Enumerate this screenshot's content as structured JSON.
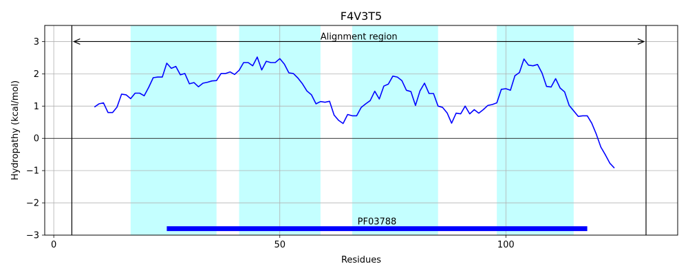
{
  "chart_data": {
    "type": "line",
    "title": "F4V3T5",
    "xlabel": "Residues",
    "ylabel": "Hydropathy (kcal/mol)",
    "xlim": [
      -2,
      138
    ],
    "ylim": [
      -3,
      3.5
    ],
    "xticks": [
      0,
      50,
      100
    ],
    "yticks": [
      -3,
      -2,
      -1,
      0,
      1,
      2,
      3
    ],
    "xtick_labels": [
      "0",
      "50",
      "100"
    ],
    "ytick_labels": [
      "−3",
      "−2",
      "−1",
      "0",
      "1",
      "2",
      "3"
    ],
    "grid": true,
    "colors": {
      "line": "#0000ff",
      "band": "#c4ffff",
      "domain_bar": "#0000ff",
      "zero_line": "#000000",
      "grid": "#b0b0b0"
    },
    "hydrophobic_regions": [
      [
        17,
        36
      ],
      [
        41,
        59
      ],
      [
        66,
        85
      ],
      [
        98,
        115
      ]
    ],
    "alignment_region": {
      "label": "Alignment region",
      "start": 4,
      "end": 131,
      "y": 3
    },
    "domain": {
      "label": "PF03788",
      "start": 25,
      "end": 118,
      "y": -2.8
    },
    "series": [
      {
        "x": [
          9,
          10,
          11,
          12,
          13,
          14,
          15,
          16,
          17,
          18,
          19,
          20,
          21,
          22,
          23,
          24,
          25,
          26,
          27,
          28,
          29,
          30,
          31,
          32,
          33,
          34,
          35,
          36,
          37,
          38,
          39,
          40,
          41,
          42,
          43,
          44,
          45,
          46,
          47,
          48,
          49,
          50,
          51,
          52,
          53,
          54,
          55,
          56,
          57,
          58,
          59,
          60,
          61,
          62,
          63,
          64,
          65,
          66,
          67,
          68,
          69,
          70,
          71,
          72,
          73,
          74,
          75,
          76,
          77,
          78,
          79,
          80,
          81,
          82,
          83,
          84,
          85,
          86,
          87,
          88,
          89,
          90,
          91,
          92,
          93,
          94,
          95,
          96,
          97,
          98,
          99,
          100,
          101,
          102,
          103,
          104,
          105,
          106,
          107,
          108,
          109,
          110,
          111,
          112,
          113,
          114,
          115,
          116,
          117,
          118,
          119,
          120,
          121,
          122,
          123,
          124
        ],
        "values": [
          0.97,
          1.07,
          1.1,
          0.8,
          0.8,
          0.97,
          1.37,
          1.35,
          1.23,
          1.4,
          1.4,
          1.32,
          1.58,
          1.88,
          1.9,
          1.9,
          2.33,
          2.17,
          2.23,
          1.97,
          2.01,
          1.69,
          1.73,
          1.6,
          1.71,
          1.74,
          1.78,
          1.79,
          2.01,
          2.01,
          2.06,
          1.98,
          2.11,
          2.35,
          2.35,
          2.25,
          2.52,
          2.12,
          2.39,
          2.35,
          2.35,
          2.47,
          2.3,
          2.03,
          2.01,
          1.87,
          1.69,
          1.47,
          1.35,
          1.07,
          1.14,
          1.12,
          1.15,
          0.72,
          0.56,
          0.46,
          0.74,
          0.7,
          0.7,
          0.96,
          1.07,
          1.17,
          1.46,
          1.22,
          1.62,
          1.68,
          1.93,
          1.9,
          1.79,
          1.49,
          1.45,
          1.02,
          1.47,
          1.71,
          1.39,
          1.39,
          1.0,
          0.96,
          0.79,
          0.47,
          0.78,
          0.76,
          1.0,
          0.76,
          0.89,
          0.78,
          0.89,
          1.02,
          1.05,
          1.1,
          1.52,
          1.54,
          1.49,
          1.94,
          2.04,
          2.46,
          2.27,
          2.25,
          2.29,
          2.02,
          1.61,
          1.59,
          1.85,
          1.56,
          1.44,
          1.02,
          0.85,
          0.68,
          0.7,
          0.7,
          0.47,
          0.13,
          -0.27,
          -0.51,
          -0.77,
          -0.92
        ]
      }
    ]
  }
}
